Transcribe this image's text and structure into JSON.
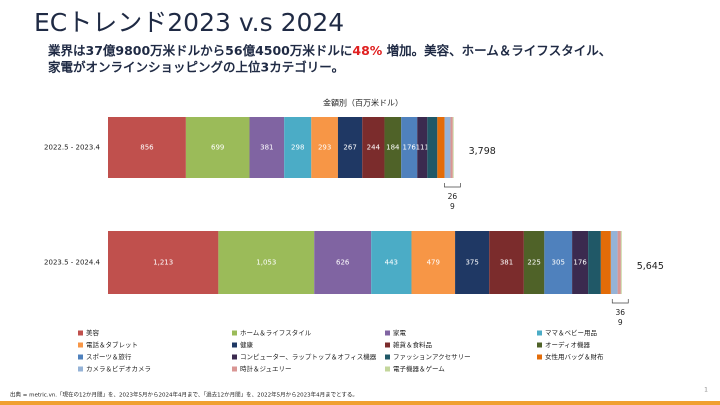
{
  "title": "ECトレンド2023 v.s 2024",
  "subtitle": {
    "line1_before": "業界は37億9800万米ドルから56億4500万米ドルに",
    "highlight": "48%",
    "line1_after": " 増加。美容、ホーム＆ライフスタイル、",
    "line2": "家電がオンラインショッピングの上位3カテゴリー。"
  },
  "chart_data": {
    "type": "stacked-bar",
    "orientation": "horizontal",
    "title": "金額別（百万米ドル）",
    "categories": [
      "2022.5 - 2023.4",
      "2023.5 - 2024.4"
    ],
    "totals": [
      {
        "value": 3798,
        "label": "3,798"
      },
      {
        "value": 5645,
        "label": "5,645"
      }
    ],
    "series": [
      {
        "name": "美容",
        "color": "#c0504d",
        "values": [
          856,
          1213
        ],
        "value_labels": [
          "856",
          "1,213"
        ],
        "labels": true
      },
      {
        "name": "ホーム＆ライフスタイル",
        "color": "#9bbb59",
        "values": [
          699,
          1053
        ],
        "value_labels": [
          "699",
          "1,053"
        ],
        "labels": true
      },
      {
        "name": "家電",
        "color": "#8064a2",
        "values": [
          381,
          626
        ],
        "labels": true
      },
      {
        "name": "ママ＆ベビー用品",
        "color": "#4bacc6",
        "values": [
          298,
          443
        ],
        "labels": true
      },
      {
        "name": "電話＆タブレット",
        "color": "#f79646",
        "values": [
          293,
          479
        ],
        "labels": true
      },
      {
        "name": "健康",
        "color": "#1f3864",
        "values": [
          267,
          375
        ],
        "labels": true
      },
      {
        "name": "雑貨＆食料品",
        "color": "#7b2c2c",
        "values": [
          244,
          381
        ],
        "labels": true
      },
      {
        "name": "オーディオ機器",
        "color": "#4f6228",
        "values": [
          184,
          225
        ],
        "labels": true
      },
      {
        "name": "スポーツ＆旅行",
        "color": "#4f81bd",
        "values": [
          176,
          305
        ],
        "labels": true
      },
      {
        "name": "コンピューター、ラップトップ＆オフィス機器",
        "color": "#3b2a4f",
        "values": [
          111,
          176
        ],
        "labels": true
      },
      {
        "name": "ファッションアクセサリー",
        "color": "#205867",
        "values": [
          110,
          140
        ]
      },
      {
        "name": "女性用バッグ＆財布",
        "color": "#e36c09",
        "values": [
          80,
          110
        ]
      },
      {
        "name": "カメラ＆ビデオカメラ",
        "color": "#95b3d7",
        "values": [
          64,
          74
        ]
      },
      {
        "name": "時計＆ジュエリー",
        "color": "#d99694",
        "values": [
          26,
          36
        ],
        "labels": true
      },
      {
        "name": "電子機器＆ゲーム",
        "color": "#c3d69b",
        "values": [
          9,
          9
        ],
        "labels": true
      }
    ]
  },
  "footer": {
    "source": "出典 = metric.vn.「現在の12か月間」を、2023年5月から2024年4月まで、「過去12か月間」を、2022年5月から2023年4月までとする。",
    "page": "1"
  }
}
